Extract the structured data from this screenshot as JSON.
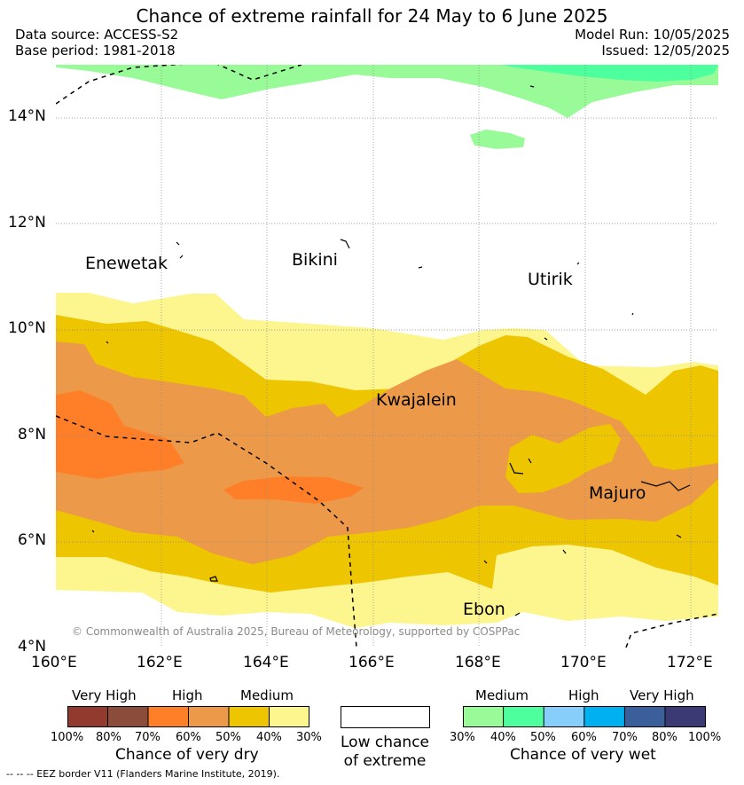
{
  "title": "Chance of extreme rainfall for 24 May to 6 June 2025",
  "header": {
    "data_source": "Data source: ACCESS-S2",
    "base_period": "Base period: 1981-2018",
    "model_run": "Model Run: 10/05/2025",
    "issued": "Issued: 12/05/2025"
  },
  "axes": {
    "lat_labels": [
      "14°N",
      "12°N",
      "10°N",
      "8°N",
      "6°N",
      "4°N"
    ],
    "lon_labels": [
      "160°E",
      "162°E",
      "164°E",
      "166°E",
      "168°E",
      "170°E",
      "172°E"
    ]
  },
  "places": [
    "Enewetak",
    "Bikini",
    "Utirik",
    "Kwajalein",
    "Majuro",
    "Ebon"
  ],
  "copyright": "© Commonwealth of Australia 2025, Bureau of Meteorology, supported by COSPPac",
  "colors": {
    "dry_very_high_1": "#933a2f",
    "dry_very_high_2": "#8b4c3b",
    "dry_high_1": "#ff7f28",
    "dry_high_2": "#ec9a4a",
    "dry_medium_1": "#edc500",
    "dry_medium_2": "#fdf58e",
    "wet_medium_1": "#98fb98",
    "wet_medium_2": "#4eff9e",
    "wet_high_1": "#87cefa",
    "wet_high_2": "#00b0f0",
    "wet_very_high_1": "#3a5f9a",
    "wet_very_high_2": "#3b3a74"
  },
  "legend": {
    "dry": {
      "categories": [
        "Very High",
        "High",
        "Medium"
      ],
      "ticks": [
        "100%",
        "80%",
        "70%",
        "60%",
        "50%",
        "40%",
        "30%"
      ],
      "title": "Chance of very dry"
    },
    "low": {
      "line1": "Low chance",
      "line2": "of extreme"
    },
    "wet": {
      "categories": [
        "Medium",
        "High",
        "Very High"
      ],
      "ticks": [
        "30%",
        "40%",
        "50%",
        "60%",
        "70%",
        "80%",
        "100%"
      ],
      "title": "Chance of very wet"
    }
  },
  "eez_note": "-- -- -- EEZ border V11 (Flanders Marine Institute, 2019)."
}
